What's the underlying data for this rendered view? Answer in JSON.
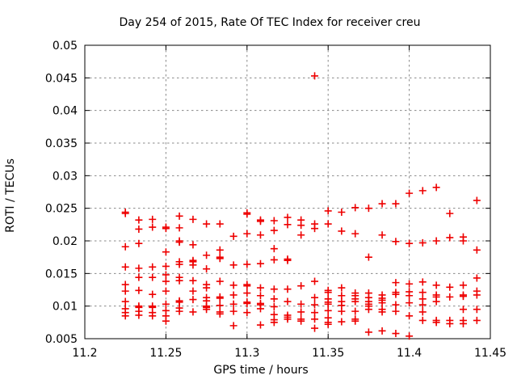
{
  "chart_data": {
    "type": "scatter",
    "title": "Day 254 of 2015, Rate Of TEC Index for receiver creu",
    "xlabel": "GPS time / hours",
    "ylabel": "ROTI / TECUs",
    "xlim": [
      11.2,
      11.45
    ],
    "ylim": [
      0.005,
      0.05
    ],
    "xticks": [
      11.2,
      11.25,
      11.3,
      11.35,
      11.4,
      11.45
    ],
    "xtick_labels": [
      "11.2",
      "11.25",
      "11.3",
      "11.35",
      "11.4",
      "11.45"
    ],
    "yticks": [
      0.005,
      0.01,
      0.015,
      0.02,
      0.025,
      0.03,
      0.035,
      0.04,
      0.045,
      0.05
    ],
    "ytick_labels": [
      "0.005",
      "0.01",
      "0.015",
      "0.02",
      "0.025",
      "0.03",
      "0.035",
      "0.04",
      "0.045",
      "0.05"
    ],
    "grid": true,
    "legend": "none",
    "background_color": "#ffffff",
    "border_color": "#000000",
    "grid_color": "#888888",
    "marker": {
      "shape": "plus",
      "color": "#ee0000",
      "size": 9
    },
    "series": [
      {
        "name": "ROTI",
        "columns": [
          {
            "t": 11.225,
            "v": [
              0.0244,
              0.0242,
              0.0191,
              0.016,
              0.0133,
              0.0123,
              0.0107,
              0.0096,
              0.009,
              0.0085
            ]
          },
          {
            "t": 11.2333,
            "v": [
              0.0232,
              0.0218,
              0.0196,
              0.0158,
              0.0144,
              0.0124,
              0.01,
              0.0098,
              0.0092,
              0.0086
            ]
          },
          {
            "t": 11.2417,
            "v": [
              0.0233,
              0.0221,
              0.016,
              0.0144,
              0.0118,
              0.01,
              0.0098,
              0.009,
              0.0085
            ]
          },
          {
            "t": 11.25,
            "v": [
              0.0221,
              0.0219,
              0.0183,
              0.0161,
              0.0148,
              0.0138,
              0.0123,
              0.0103,
              0.0093,
              0.0085,
              0.0077
            ]
          },
          {
            "t": 11.2583,
            "v": [
              0.0238,
              0.022,
              0.02,
              0.0198,
              0.0168,
              0.0164,
              0.0144,
              0.0139,
              0.0108,
              0.0106,
              0.0097,
              0.0092
            ]
          },
          {
            "t": 11.2667,
            "v": [
              0.0233,
              0.0194,
              0.017,
              0.0168,
              0.0163,
              0.0139,
              0.0123,
              0.011,
              0.0091
            ]
          },
          {
            "t": 11.275,
            "v": [
              0.0226,
              0.0178,
              0.0157,
              0.0133,
              0.0128,
              0.0113,
              0.0108,
              0.01,
              0.0098,
              0.0095
            ]
          },
          {
            "t": 11.2833,
            "v": [
              0.0226,
              0.0186,
              0.0175,
              0.0173,
              0.0138,
              0.0114,
              0.0112,
              0.0101,
              0.0091,
              0.0088
            ]
          },
          {
            "t": 11.2917,
            "v": [
              0.0207,
              0.0163,
              0.0132,
              0.0117,
              0.0103,
              0.0092,
              0.007
            ]
          },
          {
            "t": 11.3,
            "v": [
              0.0243,
              0.0241,
              0.0211,
              0.0164,
              0.0133,
              0.0131,
              0.012,
              0.0106,
              0.0104,
              0.009
            ]
          },
          {
            "t": 11.3083,
            "v": [
              0.0232,
              0.023,
              0.0209,
              0.0165,
              0.0128,
              0.0116,
              0.0104,
              0.0102,
              0.0096,
              0.0071
            ]
          },
          {
            "t": 11.3167,
            "v": [
              0.0231,
              0.0216,
              0.0188,
              0.0171,
              0.0126,
              0.0111,
              0.0099,
              0.0087,
              0.0079,
              0.0075
            ]
          },
          {
            "t": 11.325,
            "v": [
              0.0236,
              0.0225,
              0.0172,
              0.017,
              0.0126,
              0.0107,
              0.0086,
              0.0083,
              0.008
            ]
          },
          {
            "t": 11.3333,
            "v": [
              0.0232,
              0.0224,
              0.0209,
              0.0131,
              0.0103,
              0.0091,
              0.008,
              0.0077
            ]
          },
          {
            "t": 11.3417,
            "v": [
              0.0453,
              0.0226,
              0.0219,
              0.0138,
              0.0113,
              0.0102,
              0.009,
              0.008,
              0.0066
            ]
          },
          {
            "t": 11.35,
            "v": [
              0.0246,
              0.0226,
              0.0124,
              0.0121,
              0.0111,
              0.0106,
              0.0103,
              0.0093,
              0.0082,
              0.0075,
              0.0072
            ]
          },
          {
            "t": 11.3583,
            "v": [
              0.0244,
              0.0215,
              0.0128,
              0.0116,
              0.0107,
              0.0101,
              0.0092,
              0.0076
            ]
          },
          {
            "t": 11.3667,
            "v": [
              0.0251,
              0.0211,
              0.012,
              0.0116,
              0.0111,
              0.0107,
              0.0092,
              0.008,
              0.0077
            ]
          },
          {
            "t": 11.375,
            "v": [
              0.025,
              0.0175,
              0.012,
              0.0113,
              0.0107,
              0.0103,
              0.01,
              0.0095,
              0.006
            ]
          },
          {
            "t": 11.3833,
            "v": [
              0.0257,
              0.0209,
              0.0117,
              0.0112,
              0.0109,
              0.0105,
              0.0095,
              0.0091,
              0.0062
            ]
          },
          {
            "t": 11.3917,
            "v": [
              0.0257,
              0.0199,
              0.0136,
              0.0121,
              0.0118,
              0.0102,
              0.0092,
              0.0058
            ]
          },
          {
            "t": 11.4,
            "v": [
              0.0273,
              0.0196,
              0.0134,
              0.0122,
              0.0116,
              0.0105,
              0.0085,
              0.0054
            ]
          },
          {
            "t": 11.4083,
            "v": [
              0.0277,
              0.0197,
              0.0137,
              0.0121,
              0.0111,
              0.0102,
              0.0091,
              0.0078
            ]
          },
          {
            "t": 11.4167,
            "v": [
              0.0282,
              0.02,
              0.0132,
              0.0117,
              0.0114,
              0.0107,
              0.0078,
              0.0075
            ]
          },
          {
            "t": 11.425,
            "v": [
              0.0242,
              0.0205,
              0.0129,
              0.0114,
              0.0078,
              0.0073
            ]
          },
          {
            "t": 11.4333,
            "v": [
              0.0206,
              0.02,
              0.0132,
              0.0117,
              0.0115,
              0.0095,
              0.0078,
              0.0073
            ]
          },
          {
            "t": 11.4417,
            "v": [
              0.0262,
              0.0186,
              0.0143,
              0.0123,
              0.0117,
              0.0095,
              0.0078
            ]
          }
        ]
      }
    ]
  }
}
